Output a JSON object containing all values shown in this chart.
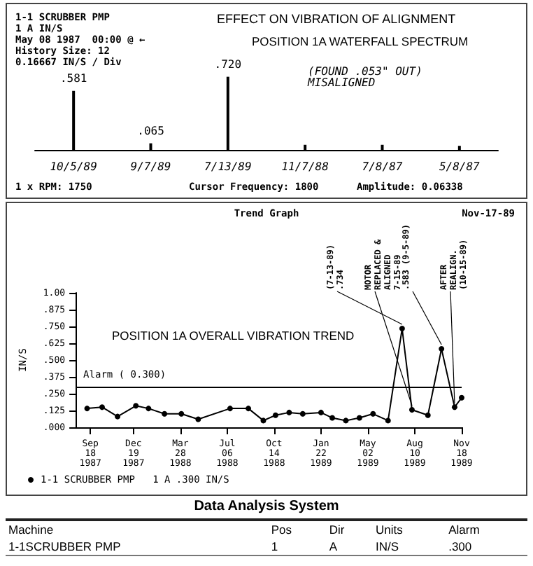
{
  "chart_data": [
    {
      "type": "bar",
      "title": "EFFECT ON VIBRATION OF ALIGNMENT",
      "subtitle": "POSITION 1A WATERFALL SPECTRUM",
      "categories": [
        "10/5/89",
        "9/7/89",
        "7/13/89",
        "11/7/88",
        "7/8/87",
        "5/8/87"
      ],
      "values": [
        0.581,
        0.065,
        0.72,
        0.05,
        0.05,
        0.04
      ],
      "value_labels": [
        ".581",
        ".065",
        ".720",
        null,
        null,
        null
      ],
      "color": "#000000",
      "annotations": [
        "1-1 SCRUBBER PMP",
        "1 A IN/S",
        "May 08 1987  00:00 @ ←",
        "History Size: 12",
        "0.16667 IN/S / Div",
        "(FOUND .053\" OUT) MISALIGNED",
        "1 x RPM: 1750",
        "Cursor Frequency: 1800",
        "Amplitude: 0.06338"
      ]
    },
    {
      "type": "line",
      "title": "Trend Graph",
      "subtitle": "POSITION 1A OVERALL VIBRATION TREND",
      "ylabel": "IN/S",
      "x": [
        "1987-09-11",
        "1987-10-13",
        "1987-11-15",
        "1987-12-24",
        "1988-01-20",
        "1988-02-23",
        "1988-03-30",
        "1988-05-05",
        "1988-07-12",
        "1988-08-20",
        "1988-09-21",
        "1988-10-17",
        "1988-11-15",
        "1988-12-14",
        "1989-01-22",
        "1989-02-15",
        "1989-03-16",
        "1989-04-14",
        "1989-05-13",
        "1989-06-14",
        "1989-07-14",
        "1989-08-04",
        "1989-09-07",
        "1989-10-06",
        "1989-11-03",
        "1989-11-18"
      ],
      "series": [
        {
          "name": "1-1 SCRUBBER PMP   1 A .300 IN/S",
          "color": "#000000",
          "values": [
            0.14,
            0.15,
            0.08,
            0.16,
            0.14,
            0.1,
            0.1,
            0.06,
            0.14,
            0.14,
            0.05,
            0.09,
            0.11,
            0.1,
            0.11,
            0.07,
            0.05,
            0.07,
            0.1,
            0.05,
            0.734,
            0.13,
            0.09,
            0.583,
            0.15,
            0.22
          ]
        }
      ],
      "xlim": [
        "1987-08-19",
        "1989-11-18"
      ],
      "xticks": [
        {
          "value": "1987-09-18",
          "label": "Sep\n18\n1987"
        },
        {
          "value": "1987-12-19",
          "label": "Dec\n19\n1987"
        },
        {
          "value": "1988-03-28",
          "label": "Mar\n28\n1988"
        },
        {
          "value": "1988-07-06",
          "label": "Jul\n06\n1988"
        },
        {
          "value": "1988-10-14",
          "label": "Oct\n14\n1988"
        },
        {
          "value": "1989-01-22",
          "label": "Jan\n22\n1989"
        },
        {
          "value": "1989-05-02",
          "label": "May\n02\n1989"
        },
        {
          "value": "1989-08-10",
          "label": "Aug\n10\n1989"
        },
        {
          "value": "1989-11-18",
          "label": "Nov\n18\n1989"
        }
      ],
      "ylim": [
        0,
        1
      ],
      "yticks": [
        {
          "value": 0,
          "label": ".000"
        },
        {
          "value": 0.125,
          "label": ".125"
        },
        {
          "value": 0.25,
          "label": ".250"
        },
        {
          "value": 0.375,
          "label": ".375"
        },
        {
          "value": 0.5,
          "label": ".500"
        },
        {
          "value": 0.625,
          "label": ".625"
        },
        {
          "value": 0.75,
          "label": ".750"
        },
        {
          "value": 0.875,
          "label": ".875"
        },
        {
          "value": 1,
          "label": "1.00"
        }
      ],
      "marker": "circle",
      "line_style": "solid",
      "legend": "bottom",
      "grid": false,
      "ref_lines": [
        {
          "axis": "y",
          "value": 0.3,
          "label": "Alarm ( 0.300)"
        }
      ],
      "annotations": [
        "Nov-17-89",
        {
          "text": "(7-13-89) .734",
          "x": "1989-07-14",
          "y": 0.734
        },
        {
          "text": "MOTOR REPLACED & ALIGNED 7-15-89",
          "x": "1989-08-04",
          "y": 0.13
        },
        {
          "text": ".583 (9-5-89)",
          "x": "1989-10-06",
          "y": 0.583
        },
        {
          "text": "AFTER REALIGN. (10-15-89)",
          "x": "1989-11-03",
          "y": 0.146
        },
        "Data Analysis System",
        "Machine",
        "Pos",
        "Dir",
        "Units",
        "Alarm",
        "1-1SCRUBBER PMP",
        "1",
        "A",
        "IN/S",
        ".300"
      ]
    }
  ]
}
